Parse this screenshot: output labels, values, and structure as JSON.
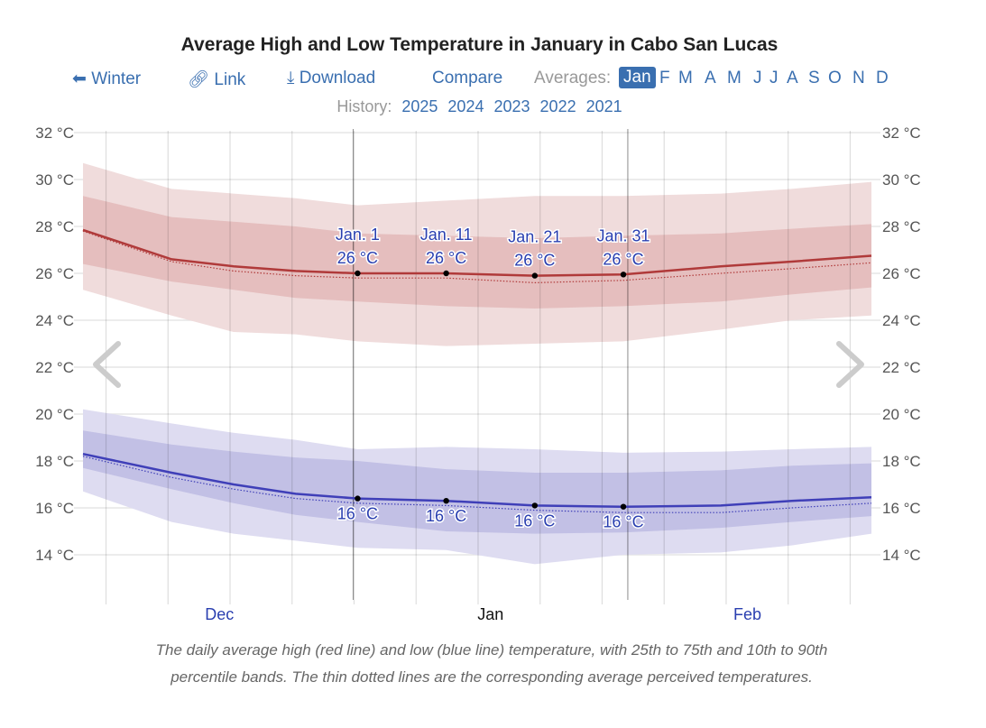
{
  "header": {
    "title": "Average High and Low Temperature in January in Cabo San Lucas"
  },
  "nav": {
    "winter": "Winter",
    "winter_icon": "arrow-left-icon",
    "link": "Link",
    "link_icon": "link-icon",
    "download": "Download",
    "download_icon": "download-icon",
    "compare": "Compare",
    "averages_label": "Averages:",
    "months": [
      "Jan",
      "F",
      "M",
      "A",
      "M",
      "J",
      "J",
      "A",
      "S",
      "O",
      "N",
      "D"
    ],
    "selected_month": "Jan"
  },
  "history": {
    "label": "History:",
    "years": [
      "2025",
      "2024",
      "2023",
      "2022",
      "2021"
    ]
  },
  "caption": {
    "line1": "The daily average high (red line) and low (blue line) temperature, with 25th to 75th and 10th to 90th",
    "line2": "percentile bands. The thin dotted lines are the corresponding average perceived temperatures."
  },
  "colors": {
    "high": "#b03a3a",
    "low": "#3f3fb8",
    "high_band_outer": "#f0dcdc",
    "high_band_inner": "#e5bebe",
    "low_band_outer": "#dedcf1",
    "low_band_inner": "#c2c0e5",
    "accent": "#3a6fb0"
  },
  "chart_data": {
    "type": "line",
    "title": "Average High and Low Temperature in January in Cabo San Lucas",
    "x_unit": "days since Dec 1",
    "xlim": [
      0,
      89
    ],
    "ylim": [
      12.9,
      32
    ],
    "yticks": [
      {
        "v": 32,
        "label": "32 °C"
      },
      {
        "v": 30,
        "label": "30 °C"
      },
      {
        "v": 28,
        "label": "28 °C"
      },
      {
        "v": 26,
        "label": "26 °C"
      },
      {
        "v": 24,
        "label": "24 °C"
      },
      {
        "v": 22,
        "label": "22 °C"
      },
      {
        "v": 20,
        "label": "20 °C"
      },
      {
        "v": 18,
        "label": "18 °C"
      },
      {
        "v": 16,
        "label": "16 °C"
      },
      {
        "v": 14,
        "label": "14 °C"
      }
    ],
    "month_labels": [
      {
        "d": 15.4,
        "label": "Dec",
        "current": false
      },
      {
        "d": 46,
        "label": "Jan",
        "current": true
      },
      {
        "d": 75,
        "label": "Feb",
        "current": false
      }
    ],
    "week_lines": [
      2.6,
      9.6,
      16.6,
      23.6,
      30.6,
      37.6,
      44.6,
      51.6,
      58.6,
      65.6,
      72.6,
      79.6,
      86.6
    ],
    "range_markers": [
      30.5,
      61.5
    ],
    "x": [
      0,
      10,
      17,
      24,
      31,
      41,
      51,
      61,
      72,
      80,
      89
    ],
    "series": [
      {
        "name": "Average high",
        "values": [
          27.85,
          26.6,
          26.3,
          26.1,
          26.0,
          26.0,
          25.9,
          25.95,
          26.3,
          26.5,
          26.75
        ]
      },
      {
        "name": "Perceived high",
        "values": [
          27.8,
          26.5,
          26.1,
          25.9,
          25.8,
          25.8,
          25.6,
          25.7,
          26.0,
          26.2,
          26.45
        ]
      },
      {
        "name": "High 25th",
        "values": [
          26.4,
          25.65,
          25.3,
          24.95,
          24.8,
          24.6,
          24.5,
          24.6,
          24.8,
          25.1,
          25.4
        ]
      },
      {
        "name": "High 75th",
        "values": [
          29.3,
          28.4,
          28.2,
          28.0,
          27.7,
          27.6,
          27.5,
          27.6,
          27.7,
          27.9,
          28.1
        ]
      },
      {
        "name": "High 10th",
        "values": [
          25.3,
          24.2,
          23.5,
          23.4,
          23.1,
          22.9,
          23.0,
          23.1,
          23.6,
          24.0,
          24.2
        ]
      },
      {
        "name": "High 90th",
        "values": [
          30.7,
          29.6,
          29.4,
          29.2,
          28.9,
          29.1,
          29.3,
          29.3,
          29.4,
          29.6,
          29.9
        ]
      },
      {
        "name": "Average low",
        "values": [
          18.3,
          17.5,
          17.0,
          16.6,
          16.4,
          16.3,
          16.1,
          16.05,
          16.1,
          16.3,
          16.45
        ]
      },
      {
        "name": "Perceived low",
        "values": [
          18.2,
          17.3,
          16.8,
          16.4,
          16.2,
          16.1,
          15.9,
          15.8,
          15.8,
          16.0,
          16.2
        ]
      },
      {
        "name": "Low 25th",
        "values": [
          17.7,
          16.8,
          16.2,
          15.7,
          15.4,
          15.0,
          14.9,
          14.95,
          15.15,
          15.4,
          15.65
        ]
      },
      {
        "name": "Low 75th",
        "values": [
          19.3,
          18.7,
          18.4,
          18.15,
          18.0,
          17.65,
          17.5,
          17.5,
          17.6,
          17.8,
          17.9
        ]
      },
      {
        "name": "Low 10th",
        "values": [
          16.7,
          15.4,
          14.9,
          14.6,
          14.3,
          14.2,
          13.6,
          14.0,
          14.1,
          14.4,
          14.9
        ]
      },
      {
        "name": "Low 90th",
        "values": [
          20.2,
          19.6,
          19.2,
          18.9,
          18.5,
          18.6,
          18.5,
          18.35,
          18.4,
          18.5,
          18.6
        ]
      }
    ],
    "annotations": [
      {
        "d": 31,
        "date": "Jan. 1",
        "high": 26,
        "high_label": "26 °C",
        "low": 16.4,
        "low_label": "16 °C"
      },
      {
        "d": 41,
        "date": "Jan. 11",
        "high": 26,
        "high_label": "26 °C",
        "low": 16.3,
        "low_label": "16 °C"
      },
      {
        "d": 51,
        "date": "Jan. 21",
        "high": 25.9,
        "high_label": "26 °C",
        "low": 16.1,
        "low_label": "16 °C"
      },
      {
        "d": 61,
        "date": "Jan. 31",
        "high": 25.95,
        "high_label": "26 °C",
        "low": 16.05,
        "low_label": "16 °C"
      }
    ]
  }
}
